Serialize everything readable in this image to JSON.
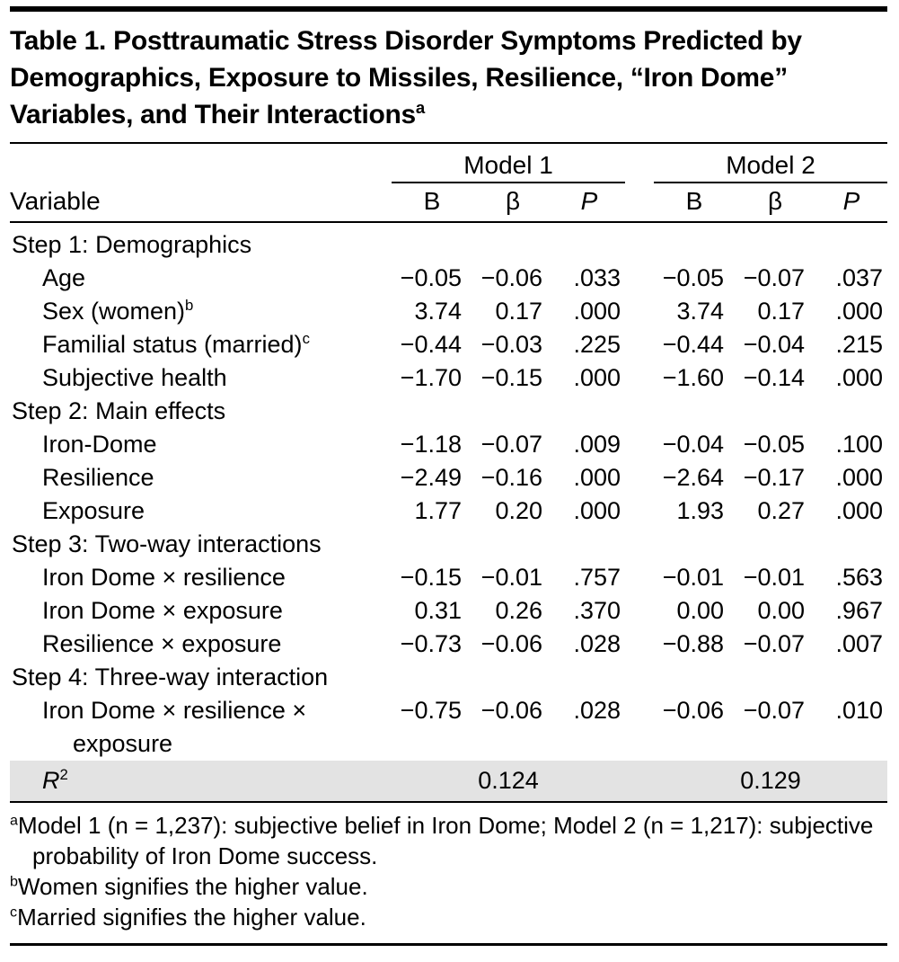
{
  "title": {
    "text": "Table 1. Posttraumatic Stress Disorder Symptoms Predicted by Demographics, Exposure to Missiles, Resilience, “Iron Dome” Variables, and Their Interactions",
    "superscript": "a"
  },
  "header": {
    "variable_label": "Variable",
    "groups": [
      {
        "label": "Model 1",
        "columns": [
          "B",
          "β",
          "P"
        ]
      },
      {
        "label": "Model 2",
        "columns": [
          "B",
          "β",
          "P"
        ]
      }
    ]
  },
  "rows": [
    {
      "type": "section",
      "label": "Step 1: Demographics"
    },
    {
      "type": "item",
      "label": "Age",
      "values": [
        "−0.05",
        "−0.06",
        ".033",
        "−0.05",
        "−0.07",
        ".037"
      ]
    },
    {
      "type": "item",
      "label": "Sex (women)",
      "label_superscript": "b",
      "values": [
        "3.74",
        "0.17",
        ".000",
        "3.74",
        "0.17",
        ".000"
      ]
    },
    {
      "type": "item",
      "label": "Familial status (married)",
      "label_superscript": "c",
      "values": [
        "−0.44",
        "−0.03",
        ".225",
        "−0.44",
        "−0.04",
        ".215"
      ]
    },
    {
      "type": "item",
      "label": "Subjective health",
      "values": [
        "−1.70",
        "−0.15",
        ".000",
        "−1.60",
        "−0.14",
        ".000"
      ]
    },
    {
      "type": "section",
      "label": "Step 2: Main effects"
    },
    {
      "type": "item",
      "label": "Iron-Dome",
      "values": [
        "−1.18",
        "−0.07",
        ".009",
        "−0.04",
        "−0.05",
        ".100"
      ]
    },
    {
      "type": "item",
      "label": "Resilience",
      "values": [
        "−2.49",
        "−0.16",
        ".000",
        "−2.64",
        "−0.17",
        ".000"
      ]
    },
    {
      "type": "item",
      "label": "Exposure",
      "values": [
        "1.77",
        "0.20",
        ".000",
        "1.93",
        "0.27",
        ".000"
      ]
    },
    {
      "type": "section",
      "label": "Step 3: Two-way interactions"
    },
    {
      "type": "item",
      "label": "Iron Dome × resilience",
      "values": [
        "−0.15",
        "−0.01",
        ".757",
        "−0.01",
        "−0.01",
        ".563"
      ]
    },
    {
      "type": "item",
      "label": "Iron Dome × exposure",
      "values": [
        "0.31",
        "0.26",
        ".370",
        "0.00",
        "0.00",
        ".967"
      ]
    },
    {
      "type": "item",
      "label": "Resilience × exposure",
      "values": [
        "−0.73",
        "−0.06",
        ".028",
        "−0.88",
        "−0.07",
        ".007"
      ]
    },
    {
      "type": "section",
      "label": "Step 4: Three-way interaction"
    },
    {
      "type": "item",
      "label": "Iron Dome × resilience × exposure",
      "values": [
        "−0.75",
        "−0.06",
        ".028",
        "−0.06",
        "−0.07",
        ".010"
      ]
    }
  ],
  "summary_row": {
    "label": "R",
    "label_superscript": "2",
    "model1_value": "0.124",
    "model2_value": "0.129"
  },
  "footnotes": [
    {
      "marker": "a",
      "text": "Model 1 (n = 1,237): subjective belief in Iron Dome; Model 2 (n = 1,217): subjective probability of Iron Dome success."
    },
    {
      "marker": "b",
      "text": "Women signifies the higher value."
    },
    {
      "marker": "c",
      "text": "Married signifies the higher value."
    }
  ],
  "colors": {
    "summary_row_background": "#e3e3e3"
  }
}
